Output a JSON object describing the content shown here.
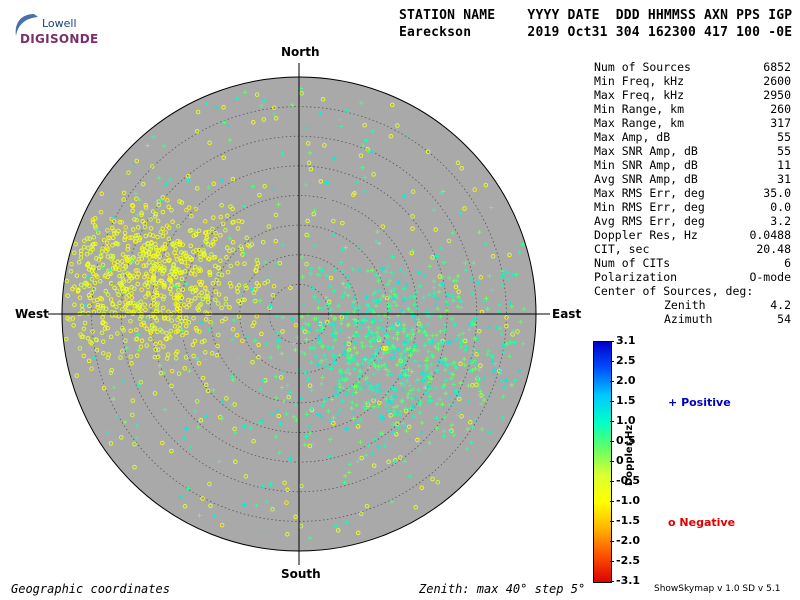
{
  "logo": {
    "line1": "Lowell",
    "line2": "DIGISONDE"
  },
  "header": {
    "labels": "STATION NAME    YYYY DATE  DDD HHMMSS AXN PPS IGP",
    "values": "Eareckson       2019 Oct31 304 162300 417 100 -0E"
  },
  "directions": {
    "north": "North",
    "south": "South",
    "east": "East",
    "west": "West"
  },
  "stats": [
    {
      "label": "Num of Sources",
      "value": "6852"
    },
    {
      "label": "Min Freq, kHz",
      "value": "2600"
    },
    {
      "label": "Max Freq, kHz",
      "value": "2950"
    },
    {
      "label": "Min Range, km",
      "value": "260"
    },
    {
      "label": "Max Range, km",
      "value": "317"
    },
    {
      "label": "Max Amp, dB",
      "value": "55"
    },
    {
      "label": "Max SNR Amp, dB",
      "value": "55"
    },
    {
      "label": "Min SNR Amp, dB",
      "value": "11"
    },
    {
      "label": "Avg SNR Amp, dB",
      "value": "31"
    },
    {
      "label": "Max RMS Err, deg",
      "value": "35.0"
    },
    {
      "label": "Min RMS Err, deg",
      "value": "0.0"
    },
    {
      "label": "Avg RMS Err, deg",
      "value": "3.2"
    },
    {
      "label": "Doppler Res, Hz",
      "value": "0.0488"
    },
    {
      "label": "CIT, sec",
      "value": "20.48"
    },
    {
      "label": "Num of CITs",
      "value": "6"
    },
    {
      "label": "Polarization",
      "value": "O-mode"
    },
    {
      "label": "Center of Sources, deg:",
      "value": ""
    },
    {
      "label": "Zenith",
      "value": "4.2",
      "sub": true
    },
    {
      "label": "Azimuth",
      "value": "54",
      "sub": true
    }
  ],
  "colorbar": {
    "title": "Doppler,Hz",
    "ticks": [
      "3.1",
      "2.5",
      "2.0",
      "1.5",
      "1.0",
      "0.5",
      "0",
      "-0.5",
      "-1.0",
      "-1.5",
      "-2.0",
      "-2.5",
      "-3.1"
    ],
    "colors": [
      "#0000cc",
      "#0050ff",
      "#00c8ff",
      "#00ffc8",
      "#64ff64",
      "#dcff32",
      "#ffff00",
      "#ffb400",
      "#ff5000",
      "#dc0000"
    ]
  },
  "legend": {
    "positive": "Positive",
    "negative": "Negative",
    "positive_color": "#0000c0",
    "negative_color": "#dd0000"
  },
  "footer": {
    "left": "Geographic coordinates",
    "middle": "Zenith: max 40°  step 5°",
    "right": "ShowSkymap v 1.0  SD v 5.1"
  },
  "chart_data": {
    "type": "scatter",
    "projection": "polar skymap",
    "zenith_max_deg": 40,
    "zenith_step_deg": 5,
    "directions": [
      "North",
      "East",
      "South",
      "West"
    ],
    "color_scale": {
      "label": "Doppler,Hz",
      "min": -3.1,
      "max": 3.1
    },
    "markers": {
      "positive_doppler": "+",
      "negative_doppler": "o"
    },
    "num_sources": 6852,
    "clusters": [
      {
        "name": "negative",
        "zenith_center_deg": 26,
        "azimuth_center_deg": 282,
        "zenith_spread_deg": 8,
        "doppler_range": [
          -1.2,
          -0.2
        ],
        "approx_count": 3000
      },
      {
        "name": "positive",
        "zenith_center_deg": 17,
        "azimuth_center_deg": 110,
        "zenith_spread_deg": 9,
        "doppler_range": [
          0.2,
          1.3
        ],
        "approx_count": 3000
      }
    ],
    "center_of_sources": {
      "zenith_deg": 4.2,
      "azimuth_deg": 54
    }
  }
}
